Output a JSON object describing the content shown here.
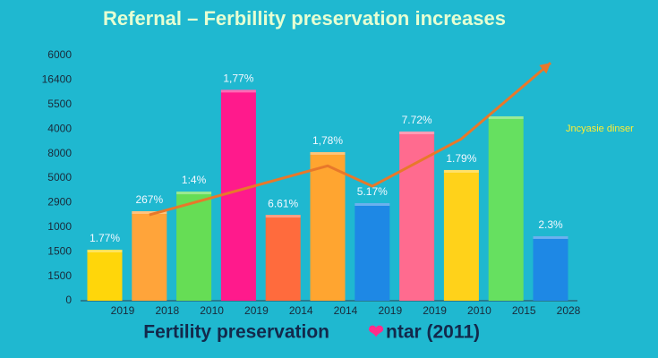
{
  "chart_data": {
    "type": "bar",
    "title": "Refernal – Ferbillity preservation increases",
    "subtitle": "Fertility preservation",
    "subtitle_icon": "❤",
    "subtitle_tail": "ntar (2011)",
    "annotation": "Jncyasie dinser",
    "categories": [
      "2019",
      "2018",
      "2010",
      "2019",
      "2014",
      "2014",
      "2019",
      "2019",
      "2010",
      "2015",
      "2028"
    ],
    "values": [
      2.08,
      3.65,
      4.45,
      8.6,
      3.5,
      6.06,
      3.98,
      6.9,
      5.33,
      7.52,
      2.63
    ],
    "bar_labels": [
      "1.77%",
      "267%",
      "1:4%",
      "1,77%",
      "6.61%",
      "1,78%",
      "5.17%",
      "7.72%",
      "1.79%",
      null,
      "2.3%"
    ],
    "colors": [
      "#ffd60a",
      "#ffa43a",
      "#66dd55",
      "#ff1a8c",
      "#ff6b3d",
      "#ffa530",
      "#1e88e5",
      "#ff6b8f",
      "#ffd21a",
      "#66e060",
      "#1e88e5"
    ],
    "trend": {
      "color": "#e8782a",
      "x": [
        1,
        5,
        6,
        8,
        10
      ],
      "values": [
        3.5,
        5.5,
        4.67,
        6.6,
        9.7
      ]
    },
    "ylim": [
      0,
      10
    ],
    "yticks": [
      {
        "value": 0,
        "label": "0"
      },
      {
        "value": 1,
        "label": "1500"
      },
      {
        "value": 2,
        "label": "1500"
      },
      {
        "value": 3,
        "label": "1000"
      },
      {
        "value": 4,
        "label": "2900"
      },
      {
        "value": 5,
        "label": "5000"
      },
      {
        "value": 6,
        "label": "8000"
      },
      {
        "value": 7,
        "label": "4000"
      },
      {
        "value": 8,
        "label": "5500"
      },
      {
        "value": 9,
        "label": "16400"
      },
      {
        "value": 10,
        "label": "6000"
      }
    ],
    "grid": false
  }
}
